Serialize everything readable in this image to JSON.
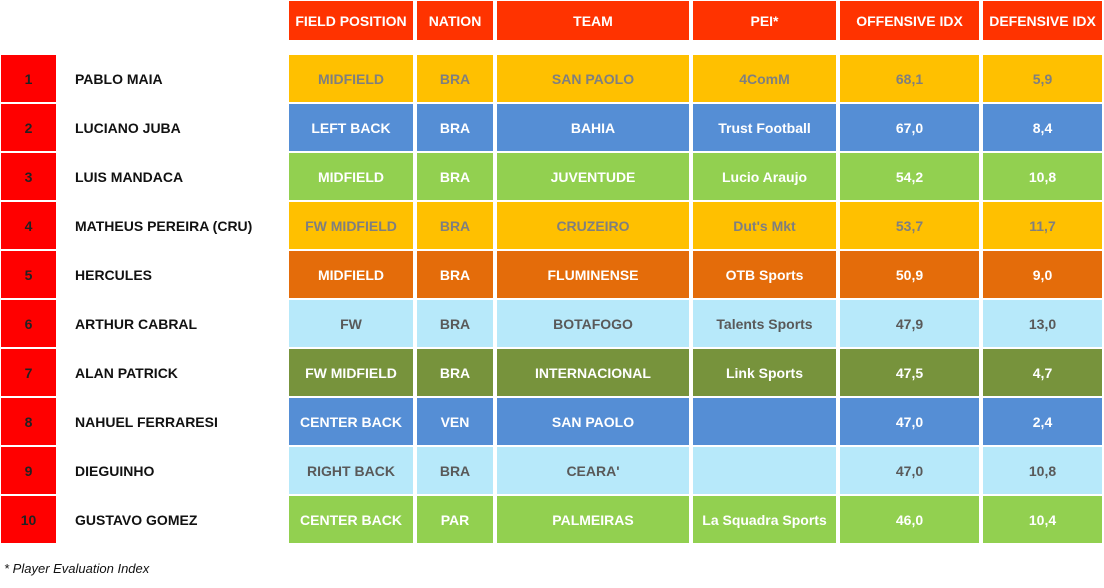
{
  "headers": {
    "field_position": "FIELD POSITION",
    "nation": "NATION",
    "team": "TEAM",
    "pei": "PEI*",
    "offensive_idx": "OFFENSIVE IDX",
    "defensive_idx": "DEFENSIVE IDX"
  },
  "rows": [
    {
      "rank": "1",
      "name": "PABLO MAIA",
      "position": "MIDFIELD",
      "nation": "BRA",
      "team": "SAN PAOLO",
      "pei": "4ComM",
      "offensive": "68,1",
      "defensive": "5,9",
      "bg": "#ffc000",
      "fg": "#7f7f7f"
    },
    {
      "rank": "2",
      "name": "LUCIANO JUBA",
      "position": "LEFT BACK",
      "nation": "BRA",
      "team": "BAHIA",
      "pei": "Trust Football",
      "offensive": "67,0",
      "defensive": "8,4",
      "bg": "#558ed5",
      "fg": "#ffffff"
    },
    {
      "rank": "3",
      "name": "LUIS MANDACA",
      "position": "MIDFIELD",
      "nation": "BRA",
      "team": "JUVENTUDE",
      "pei": "Lucio Araujo",
      "offensive": "54,2",
      "defensive": "10,8",
      "bg": "#92d050",
      "fg": "#ffffff"
    },
    {
      "rank": "4",
      "name": "MATHEUS PEREIRA (CRU)",
      "position": "FW MIDFIELD",
      "nation": "BRA",
      "team": "CRUZEIRO",
      "pei": "Dut's Mkt",
      "offensive": "53,7",
      "defensive": "11,7",
      "bg": "#ffc000",
      "fg": "#7f7f7f"
    },
    {
      "rank": "5",
      "name": "HERCULES",
      "position": "MIDFIELD",
      "nation": "BRA",
      "team": "FLUMINENSE",
      "pei": "OTB Sports",
      "offensive": "50,9",
      "defensive": "9,0",
      "bg": "#e46c0a",
      "fg": "#ffffff"
    },
    {
      "rank": "6",
      "name": "ARTHUR CABRAL",
      "position": "FW",
      "nation": "BRA",
      "team": "BOTAFOGO",
      "pei": "Talents Sports",
      "offensive": "47,9",
      "defensive": "13,0",
      "bg": "#b7e9fa",
      "fg": "#595959"
    },
    {
      "rank": "7",
      "name": "ALAN PATRICK",
      "position": "FW MIDFIELD",
      "nation": "BRA",
      "team": "INTERNACIONAL",
      "pei": "Link Sports",
      "offensive": "47,5",
      "defensive": "4,7",
      "bg": "#77933c",
      "fg": "#ffffff"
    },
    {
      "rank": "8",
      "name": "NAHUEL FERRARESI",
      "position": "CENTER BACK",
      "nation": "VEN",
      "team": "SAN PAOLO",
      "pei": "",
      "offensive": "47,0",
      "defensive": "2,4",
      "bg": "#558ed5",
      "fg": "#ffffff"
    },
    {
      "rank": "9",
      "name": "DIEGUINHO",
      "position": "RIGHT BACK",
      "nation": "BRA",
      "team": "CEARA'",
      "pei": "",
      "offensive": "47,0",
      "defensive": "10,8",
      "bg": "#b7e9fa",
      "fg": "#595959"
    },
    {
      "rank": "10",
      "name": "GUSTAVO GOMEZ",
      "position": "CENTER BACK",
      "nation": "PAR",
      "team": "PALMEIRAS",
      "pei": "La Squadra Sports",
      "offensive": "46,0",
      "defensive": "10,4",
      "bg": "#92d050",
      "fg": "#ffffff"
    }
  ],
  "footnote": "* Player Evaluation Index"
}
